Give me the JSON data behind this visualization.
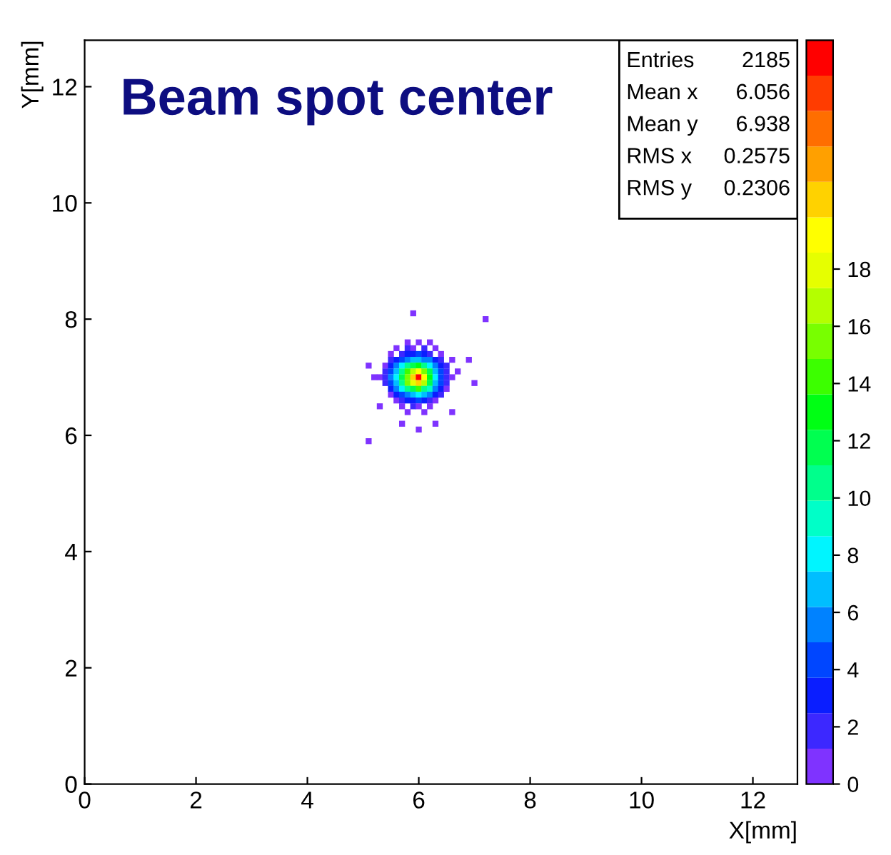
{
  "chart_data": {
    "type": "scatter",
    "title": "Beam spot center",
    "xlabel": "X[mm]",
    "ylabel": "Y[mm]",
    "xlim": [
      0,
      12.8
    ],
    "ylim": [
      0,
      12.8
    ],
    "xticks": [
      0,
      2,
      4,
      6,
      8,
      10,
      12
    ],
    "yticks": [
      0,
      2,
      4,
      6,
      8,
      10,
      12
    ],
    "clim": [
      0,
      26
    ],
    "cticks": [
      0,
      2,
      4,
      6,
      8,
      10,
      12,
      14,
      16,
      18
    ],
    "marker": "square",
    "grid": false,
    "annotations": [
      "Entries 2185",
      "Mean x 6.056",
      "Mean y 6.938",
      "RMS x 0.2575",
      "RMS y 0.2306"
    ],
    "x": [
      5.8,
      6.0,
      6.2,
      5.6,
      5.8,
      5.9,
      6.1,
      6.3,
      5.5,
      5.7,
      5.8,
      5.9,
      6.0,
      6.1,
      6.2,
      6.4,
      5.5,
      5.6,
      5.7,
      5.8,
      5.9,
      6.0,
      6.1,
      6.2,
      6.3,
      6.4,
      6.6,
      5.4,
      5.5,
      5.6,
      5.7,
      5.8,
      5.9,
      6.0,
      6.1,
      6.2,
      6.3,
      6.4,
      6.5,
      5.4,
      5.5,
      5.6,
      5.7,
      5.8,
      5.9,
      6.0,
      6.1,
      6.2,
      6.3,
      6.4,
      6.5,
      6.7,
      5.3,
      5.4,
      5.5,
      5.6,
      5.7,
      5.8,
      5.9,
      6.0,
      6.1,
      6.2,
      6.3,
      6.4,
      6.5,
      6.6,
      5.4,
      5.5,
      5.6,
      5.7,
      5.8,
      5.9,
      6.0,
      6.1,
      6.2,
      6.3,
      6.4,
      6.5,
      5.5,
      5.6,
      5.7,
      5.8,
      5.9,
      6.0,
      6.1,
      6.2,
      6.3,
      6.4,
      6.5,
      5.5,
      5.6,
      5.7,
      5.8,
      5.9,
      6.0,
      6.1,
      6.2,
      6.3,
      6.4,
      5.6,
      5.7,
      5.8,
      5.9,
      6.0,
      6.1,
      6.2,
      6.3,
      5.7,
      5.9,
      6.0,
      6.2,
      5.8,
      6.1,
      5.1,
      5.9,
      7.2,
      5.2,
      7.0,
      6.9,
      5.3,
      6.6,
      5.7,
      6.3,
      6.0,
      5.1
    ],
    "values": [
      7.6,
      7.6,
      7.6,
      7.5,
      7.5,
      7.5,
      7.5,
      7.5,
      7.4,
      7.4,
      7.4,
      7.4,
      7.4,
      7.4,
      7.4,
      7.4,
      7.3,
      7.3,
      7.3,
      7.3,
      7.3,
      7.3,
      7.3,
      7.3,
      7.3,
      7.3,
      7.3,
      7.2,
      7.2,
      7.2,
      7.2,
      7.2,
      7.2,
      7.2,
      7.2,
      7.2,
      7.2,
      7.2,
      7.2,
      7.1,
      7.1,
      7.1,
      7.1,
      7.1,
      7.1,
      7.1,
      7.1,
      7.1,
      7.1,
      7.1,
      7.1,
      7.1,
      7.0,
      7.0,
      7.0,
      7.0,
      7.0,
      7.0,
      7.0,
      7.0,
      7.0,
      7.0,
      7.0,
      7.0,
      7.0,
      7.0,
      6.9,
      6.9,
      6.9,
      6.9,
      6.9,
      6.9,
      6.9,
      6.9,
      6.9,
      6.9,
      6.9,
      6.9,
      6.8,
      6.8,
      6.8,
      6.8,
      6.8,
      6.8,
      6.8,
      6.8,
      6.8,
      6.8,
      6.8,
      6.7,
      6.7,
      6.7,
      6.7,
      6.7,
      6.7,
      6.7,
      6.7,
      6.7,
      6.7,
      6.6,
      6.6,
      6.6,
      6.6,
      6.6,
      6.6,
      6.6,
      6.6,
      6.5,
      6.5,
      6.5,
      6.5,
      6.4,
      6.4,
      5.9,
      8.1,
      8.0,
      7.0,
      6.9,
      7.3,
      6.5,
      6.4,
      6.2,
      6.2,
      6.1,
      7.2
    ],
    "cvalues": [
      1,
      1,
      1,
      1,
      2,
      1,
      2,
      1,
      1,
      2,
      3,
      3,
      4,
      3,
      2,
      1,
      2,
      3,
      4,
      6,
      7,
      7,
      6,
      5,
      3,
      2,
      1,
      1,
      3,
      5,
      8,
      10,
      12,
      13,
      11,
      8,
      5,
      3,
      2,
      2,
      4,
      7,
      11,
      14,
      17,
      19,
      16,
      12,
      7,
      4,
      2,
      1,
      1,
      2,
      5,
      8,
      12,
      16,
      21,
      25,
      19,
      13,
      8,
      4,
      2,
      1,
      2,
      4,
      7,
      11,
      15,
      18,
      20,
      17,
      12,
      7,
      4,
      2,
      3,
      5,
      8,
      10,
      12,
      14,
      11,
      9,
      5,
      3,
      1,
      1,
      3,
      4,
      6,
      7,
      8,
      7,
      5,
      3,
      2,
      1,
      2,
      3,
      3,
      4,
      3,
      2,
      1,
      1,
      2,
      1,
      1,
      1,
      1,
      1,
      1,
      1,
      1,
      1,
      1,
      1,
      1,
      1,
      1,
      1,
      1
    ]
  }
}
